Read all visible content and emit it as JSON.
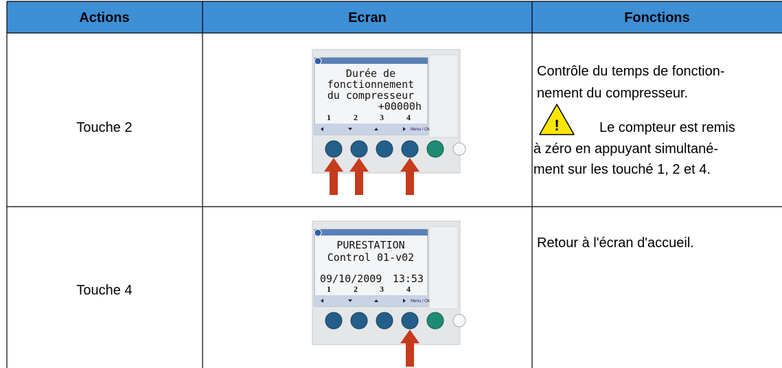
{
  "table": {
    "headers": [
      "Actions",
      "Ecran",
      "Fonctions"
    ],
    "rows": [
      {
        "action": "Touche 2",
        "screen": {
          "lines": [
            "Durée de",
            "fonctionnement",
            "du compresseur",
            "+00000h"
          ],
          "keys": [
            "1",
            "2",
            "3",
            "4"
          ],
          "menu": "Menu / Ok"
        },
        "function": {
          "lines": [
            "Contrôle du temps de fonction-",
            "nement du compresseur."
          ],
          "warning": [
            "Le compteur est remis",
            "à zéro en appuyant simultané-",
            "ment sur les touché 1, 2 et 4."
          ]
        }
      },
      {
        "action": "Touche 4",
        "screen": {
          "lines": [
            "PURESTATION",
            "Control 01-v02",
            "09/10/2009",
            "13:53"
          ],
          "keys": [
            "1",
            "2",
            "3",
            "4"
          ],
          "menu": "Menu / Ok"
        },
        "function": {
          "lines": [
            "Retour à l'écran d'accueil."
          ]
        }
      }
    ]
  }
}
